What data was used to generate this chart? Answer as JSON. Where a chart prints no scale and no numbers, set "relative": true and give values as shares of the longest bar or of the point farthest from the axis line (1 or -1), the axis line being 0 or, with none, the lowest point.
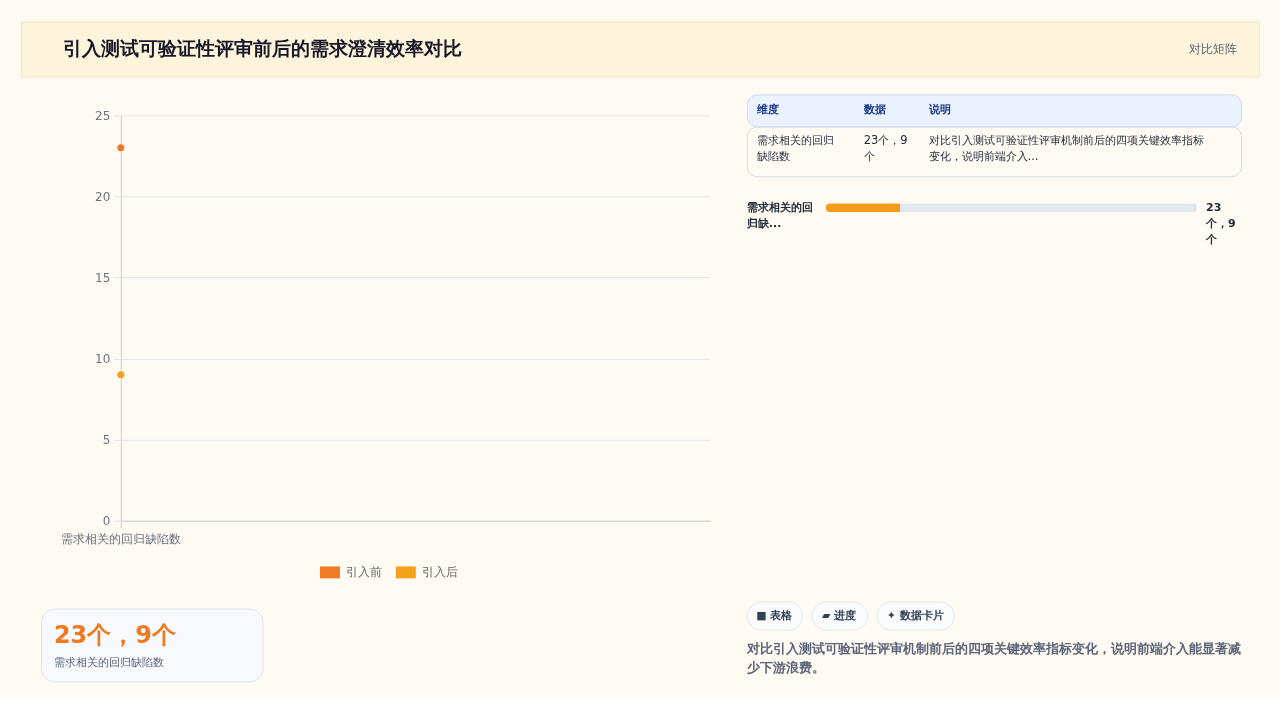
{
  "chart_data": [
    {
      "type": "other",
      "title": "引入测试可验证性评审前后的需求澄清效率对比",
      "annotations": [
        "对比矩阵"
      ]
    },
    {
      "type": "line",
      "categories": [
        "需求相关的回归缺陷数"
      ],
      "series": [
        {
          "name": "引入前",
          "color": "#f07c28",
          "values": [
            23
          ]
        },
        {
          "name": "引入后",
          "color": "#f4a21e",
          "values": [
            9
          ]
        }
      ],
      "ylim": [
        0,
        25
      ],
      "yticks": [
        0,
        5,
        10,
        15,
        20,
        25
      ],
      "grid": "y",
      "legend": "bottom",
      "marker": "circle"
    },
    {
      "type": "other",
      "annotations": [
        "23个，9个",
        "需求相关的回归缺陷数"
      ]
    },
    {
      "type": "other",
      "annotations": [
        "维度",
        "数据",
        "说明",
        "需求相关的回归缺陷数",
        "23个，9个",
        "对比引入测试可验证性评审机制前后的四项关键效率指标变化，说明前端介入..."
      ]
    },
    {
      "type": "bar",
      "orientation": "horizontal",
      "stacked": true,
      "relative": true,
      "categories": [
        "需求相关的回归缺..."
      ],
      "series": [
        {
          "color": "#f59c1a",
          "values": [
            0.2
          ]
        },
        {
          "color": "#e2e8f0",
          "values": [
            0.8
          ]
        }
      ],
      "value_labels": [
        "23个，9个"
      ]
    },
    {
      "type": "other",
      "annotations": [
        "■ 表格",
        "▰ 进度",
        "✦ 数据卡片"
      ]
    },
    {
      "type": "other",
      "annotations": [
        "对比引入测试可验证性评审机制前后的四项关键效率指标变化，说明前端介入能显著减少下游浪费。"
      ]
    }
  ]
}
